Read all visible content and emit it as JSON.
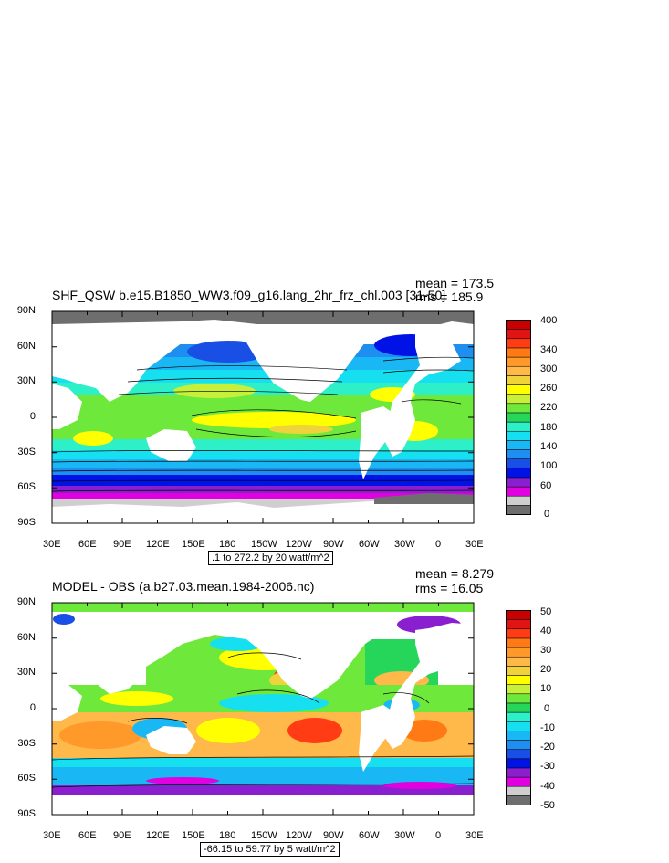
{
  "panels": [
    {
      "title": "SHF_QSW b.e15.B1850_WW3.f09_g16.lang_2hr_frz_chl.003 [31-50]",
      "mean": "mean = 173.5",
      "rms": "rms = 185.9",
      "note": ".1 to 272.2 by 20 watt/m^2",
      "x_ticks": [
        "30E",
        "60E",
        "90E",
        "120E",
        "150E",
        "180",
        "150W",
        "120W",
        "90W",
        "60W",
        "30W",
        "0",
        "30E"
      ],
      "y_ticks": [
        "90N",
        "60N",
        "30N",
        "0",
        "30S",
        "60S",
        "90S"
      ],
      "colorbar_labels": [
        "400",
        "340",
        "300",
        "260",
        "220",
        "180",
        "140",
        "100",
        "60",
        "0"
      ],
      "colors": [
        "#6e6e6e",
        "#cfcfcf",
        "#e000e0",
        "#8a1fd0",
        "#0012e6",
        "#1a4fe6",
        "#1e8ff0",
        "#19b8f5",
        "#16e0f0",
        "#2ef0c8",
        "#26d65a",
        "#6ee83a",
        "#c8f03a",
        "#ffff00",
        "#f0d23a",
        "#ffb84a",
        "#ff9a2a",
        "#ff7a14",
        "#ff3c14",
        "#e01414",
        "#c80000"
      ]
    },
    {
      "title": "MODEL - OBS (a.b27.03.mean.1984-2006.nc)",
      "mean": "mean = 8.279",
      "rms": "rms = 16.05",
      "note": "-66.15 to 59.77 by 5 watt/m^2",
      "x_ticks": [
        "30E",
        "60E",
        "90E",
        "120E",
        "150E",
        "180",
        "150W",
        "120W",
        "90W",
        "60W",
        "30W",
        "0",
        "30E"
      ],
      "y_ticks": [
        "90N",
        "60N",
        "30N",
        "0",
        "30S",
        "60S",
        "90S"
      ],
      "colorbar_labels": [
        "50",
        "40",
        "30",
        "20",
        "10",
        "0",
        "-10",
        "-20",
        "-30",
        "-40",
        "-50"
      ],
      "colors": [
        "#6e6e6e",
        "#cfcfcf",
        "#e000e0",
        "#8a1fd0",
        "#0012e6",
        "#1a4fe6",
        "#1e8ff0",
        "#19b8f5",
        "#16e0f0",
        "#2ef0c8",
        "#26d65a",
        "#6ee83a",
        "#c8f03a",
        "#ffff00",
        "#f0d23a",
        "#ffb84a",
        "#ff9a2a",
        "#ff7a14",
        "#ff3c14",
        "#e01414",
        "#c80000"
      ]
    }
  ]
}
